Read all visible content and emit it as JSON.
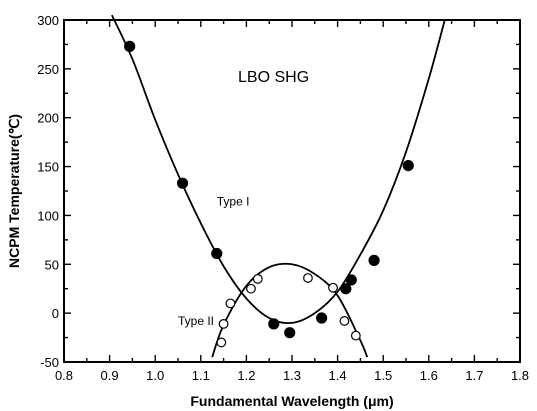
{
  "chart_data": {
    "type": "scatter",
    "title": "LBO SHG",
    "xlabel": "Fundamental Wavelength (μm)",
    "ylabel": "NCPM Temperature(℃)",
    "xlim": [
      0.8,
      1.8
    ],
    "ylim": [
      -50,
      300
    ],
    "x_ticks": [
      "0.8",
      "0.9",
      "1.0",
      "1.1",
      "1.2",
      "1.3",
      "1.4",
      "1.5",
      "1.6",
      "1.7",
      "1.8"
    ],
    "y_ticks": [
      "-50",
      "0",
      "50",
      "100",
      "150",
      "200",
      "250",
      "300"
    ],
    "grid": false,
    "legend": "none",
    "annotations": [
      {
        "text": "Type I",
        "x": 1.135,
        "y": 110
      },
      {
        "text": "Type II",
        "x": 1.05,
        "y": -12
      }
    ],
    "series": [
      {
        "marker": "filled-circle",
        "points": [
          [
            0.944,
            273
          ],
          [
            1.06,
            133
          ],
          [
            1.135,
            61
          ],
          [
            1.26,
            -11
          ],
          [
            1.295,
            -20
          ],
          [
            1.365,
            -5
          ],
          [
            1.418,
            25
          ],
          [
            1.43,
            34
          ],
          [
            1.48,
            54
          ],
          [
            1.555,
            151
          ]
        ]
      },
      {
        "marker": "open-circle",
        "points": [
          [
            1.145,
            -30
          ],
          [
            1.15,
            -11
          ],
          [
            1.165,
            10
          ],
          [
            1.21,
            25
          ],
          [
            1.225,
            35
          ],
          [
            1.335,
            36
          ],
          [
            1.39,
            26
          ],
          [
            1.415,
            -8
          ],
          [
            1.44,
            -23
          ]
        ]
      },
      {
        "marker": "line",
        "x": [
          0.905,
          0.95,
          1.0,
          1.05,
          1.1,
          1.15,
          1.2,
          1.25,
          1.3,
          1.35,
          1.4,
          1.45,
          1.5,
          1.55,
          1.6,
          1.635
        ],
        "y": [
          305,
          260,
          198,
          142,
          92,
          48,
          15,
          -5,
          -10,
          0,
          22,
          60,
          105,
          165,
          240,
          300
        ]
      },
      {
        "marker": "line",
        "x": [
          1.125,
          1.15,
          1.2,
          1.25,
          1.3,
          1.35,
          1.4,
          1.45,
          1.465
        ],
        "y": [
          -45,
          -12,
          28,
          47,
          50,
          40,
          18,
          -28,
          -45
        ]
      }
    ]
  }
}
